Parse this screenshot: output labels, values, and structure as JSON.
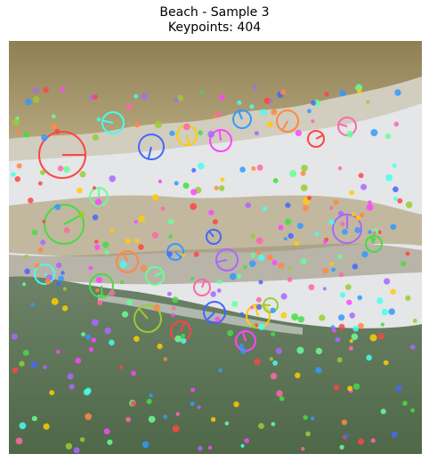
{
  "figure": {
    "title": "Beach - Sample 3",
    "subtitle": "Keypoints: 404"
  },
  "image": {
    "description_colors": {
      "sand_top": "#9a8a60",
      "water": "#dfe3e6",
      "vegetation": "#57704e"
    }
  }
}
